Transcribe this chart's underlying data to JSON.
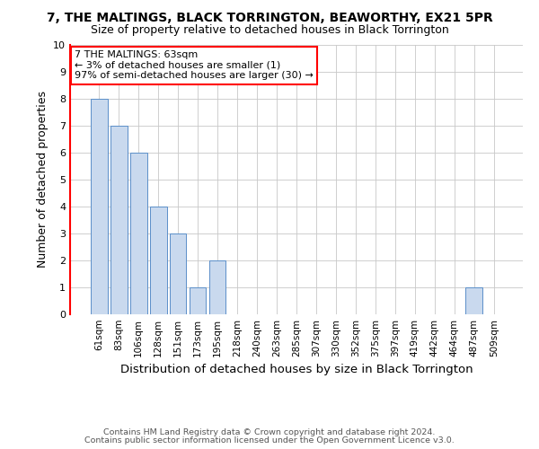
{
  "title1": "7, THE MALTINGS, BLACK TORRINGTON, BEAWORTHY, EX21 5PR",
  "title2": "Size of property relative to detached houses in Black Torrington",
  "xlabel": "Distribution of detached houses by size in Black Torrington",
  "ylabel": "Number of detached properties",
  "categories": [
    "61sqm",
    "83sqm",
    "106sqm",
    "128sqm",
    "151sqm",
    "173sqm",
    "195sqm",
    "218sqm",
    "240sqm",
    "263sqm",
    "285sqm",
    "307sqm",
    "330sqm",
    "352sqm",
    "375sqm",
    "397sqm",
    "419sqm",
    "442sqm",
    "464sqm",
    "487sqm",
    "509sqm"
  ],
  "values": [
    8,
    7,
    6,
    4,
    3,
    1,
    2,
    0,
    0,
    0,
    0,
    0,
    0,
    0,
    0,
    0,
    0,
    0,
    0,
    1,
    0
  ],
  "bar_color": "#c9d9ee",
  "bar_edge_color": "#5b8fc9",
  "annotation_text": "7 THE MALTINGS: 63sqm\n← 3% of detached houses are smaller (1)\n97% of semi-detached houses are larger (30) →",
  "annotation_box_color": "white",
  "annotation_box_edge_color": "red",
  "ylim": [
    0,
    10
  ],
  "yticks": [
    0,
    1,
    2,
    3,
    4,
    5,
    6,
    7,
    8,
    9,
    10
  ],
  "footnote1": "Contains HM Land Registry data © Crown copyright and database right 2024.",
  "footnote2": "Contains public sector information licensed under the Open Government Licence v3.0.",
  "grid_color": "#c8c8c8",
  "title_fontsize": 10,
  "subtitle_fontsize": 9,
  "axis_label_fontsize": 9,
  "tick_fontsize": 7.5,
  "annotation_fontsize": 8,
  "footnote_fontsize": 6.8
}
